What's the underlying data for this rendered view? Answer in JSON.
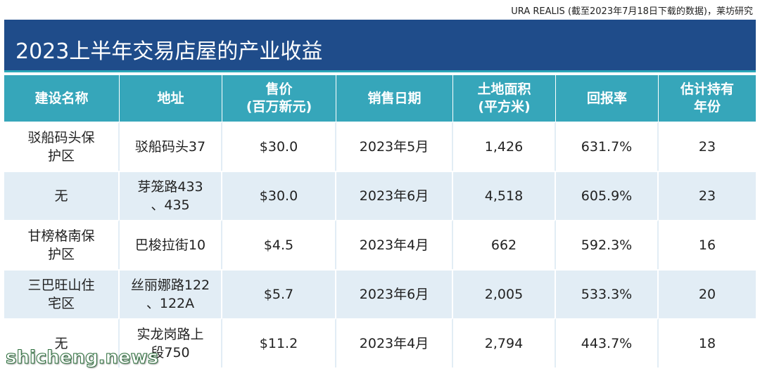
{
  "source": "URA REALIS (截至2023年7月18日下载的数据)，莱坊研究",
  "title": "2023上半年交易店屋的产业收益",
  "table": {
    "headers": [
      [
        "建设名称"
      ],
      [
        "地址"
      ],
      [
        "售价",
        "(百万新元)"
      ],
      [
        "销售日期"
      ],
      [
        "土地面积",
        "(平方米)"
      ],
      [
        "回报率"
      ],
      [
        "估计持有",
        "年份"
      ]
    ],
    "rows": [
      [
        [
          "驳船码头保",
          "护区"
        ],
        [
          "驳船码头37"
        ],
        [
          "$30.0"
        ],
        [
          "2023年5月"
        ],
        [
          "1,426"
        ],
        [
          "631.7%"
        ],
        [
          "23"
        ]
      ],
      [
        [
          "无"
        ],
        [
          "芽笼路433",
          "、435"
        ],
        [
          "$30.0"
        ],
        [
          "2023年6月"
        ],
        [
          "4,518"
        ],
        [
          "605.9%"
        ],
        [
          "23"
        ]
      ],
      [
        [
          "甘榜格南保",
          "护区"
        ],
        [
          "巴梭拉街10"
        ],
        [
          "$4.5"
        ],
        [
          "2023年4月"
        ],
        [
          "662"
        ],
        [
          "592.3%"
        ],
        [
          "16"
        ]
      ],
      [
        [
          "三巴旺山住",
          "宅区"
        ],
        [
          "丝丽娜路122",
          "、122A"
        ],
        [
          "$5.7"
        ],
        [
          "2023年6月"
        ],
        [
          "2,005"
        ],
        [
          "533.3%"
        ],
        [
          "20"
        ]
      ],
      [
        [
          "无"
        ],
        [
          "实龙岗路上",
          "段750"
        ],
        [
          "$11.2"
        ],
        [
          "2023年4月"
        ],
        [
          "2,794"
        ],
        [
          "443.7%"
        ],
        [
          "18"
        ]
      ]
    ]
  },
  "watermark": "shicheng.news",
  "colors": {
    "title_bar": "#1f4c8a",
    "header_bg": "#36a6ba",
    "row_alt_bg": "#e2edf5"
  }
}
